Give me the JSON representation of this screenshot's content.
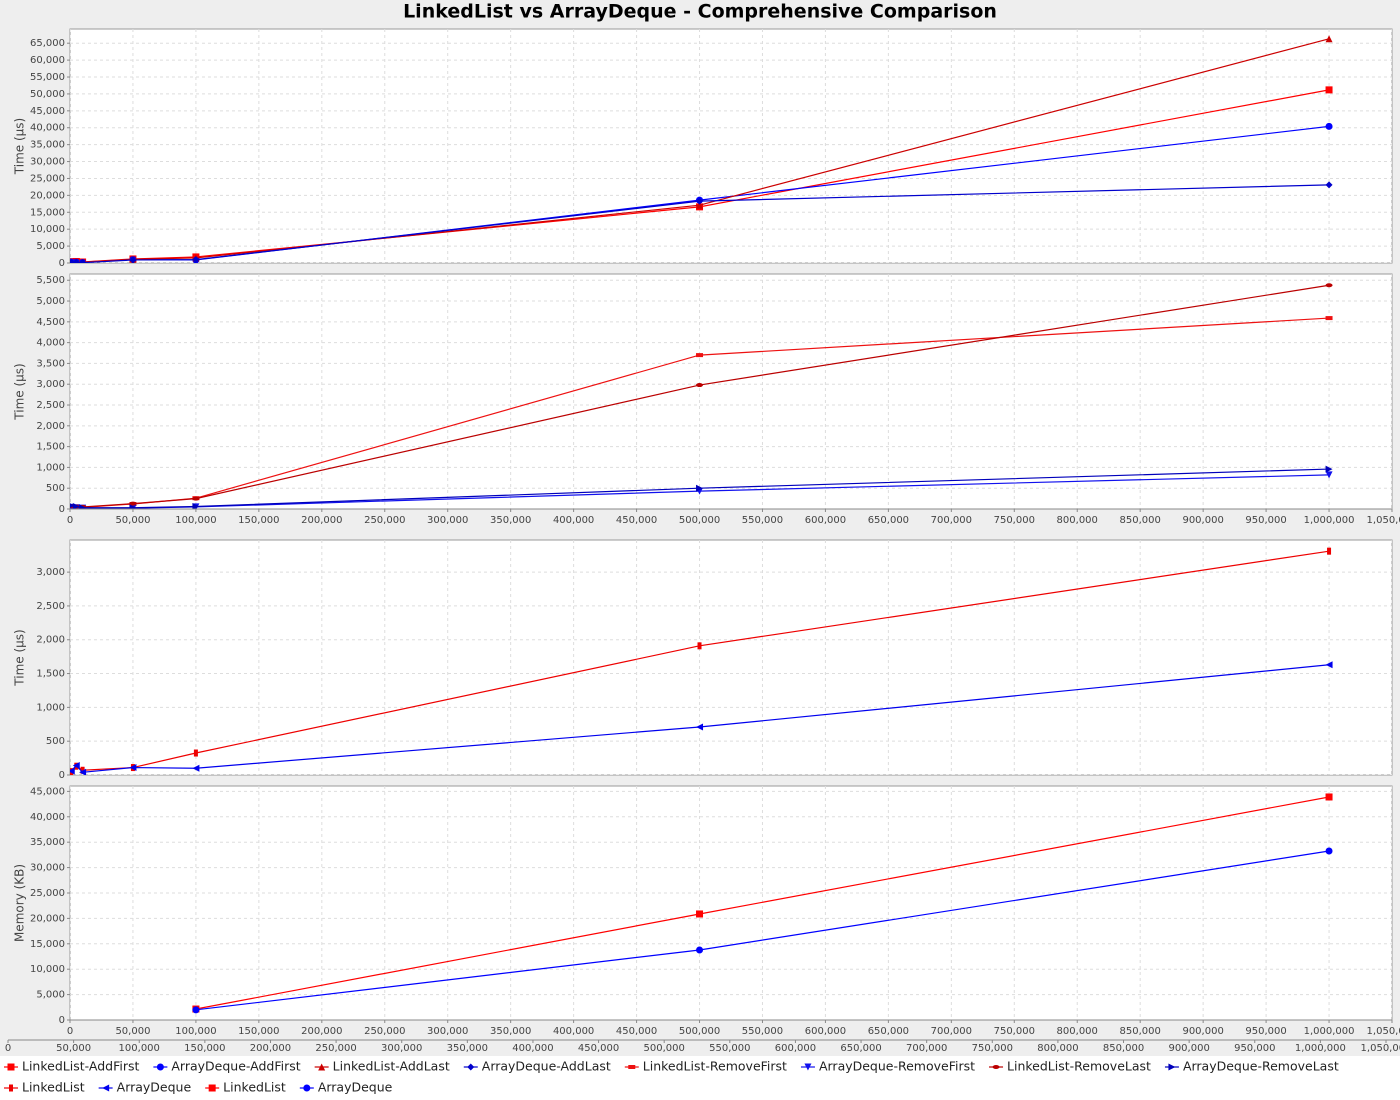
{
  "title": "LinkedList vs ArrayDeque - Comprehensive Comparison",
  "chart_data": [
    {
      "type": "line",
      "ylabel": "Time (µs)",
      "x": [
        1000,
        5000,
        10000,
        50000,
        100000,
        500000,
        1000000
      ],
      "xlim": [
        0,
        1050000
      ],
      "x_axis_labels": false,
      "xticks": [
        0,
        50000,
        100000,
        150000,
        200000,
        250000,
        300000,
        350000,
        400000,
        450000,
        500000,
        550000,
        600000,
        650000,
        700000,
        750000,
        800000,
        850000,
        900000,
        950000,
        1000000,
        1050000
      ],
      "ylim": [
        0,
        69200
      ],
      "yticks": [
        0,
        {
          "value": 5000,
          "label": "5,000"
        },
        {
          "value": 10000,
          "label": "10,000"
        },
        {
          "value": 15000,
          "label": "15,000"
        },
        {
          "value": 20000,
          "label": "20,000"
        },
        {
          "value": 25000,
          "label": "25,000"
        },
        {
          "value": 30000,
          "label": "30,000"
        },
        {
          "value": 35000,
          "label": "35,000"
        },
        {
          "value": 40000,
          "label": "40,000"
        },
        {
          "value": 45000,
          "label": "45,000"
        },
        {
          "value": 50000,
          "label": "50,000"
        },
        {
          "value": 55000,
          "label": "55,000"
        },
        {
          "value": 60000,
          "label": "60,000"
        },
        {
          "value": 65000,
          "label": "65,000"
        }
      ],
      "grid": true,
      "series": [
        {
          "name": "LinkedList-AddFirst",
          "color": "#ff0000",
          "marker": "square",
          "values": [
            400,
            450,
            300,
            1200,
            1800,
            16600,
            51200
          ]
        },
        {
          "name": "ArrayDeque-AddFirst",
          "color": "#0000ff",
          "marker": "circle",
          "values": [
            300,
            250,
            150,
            1000,
            900,
            18600,
            40400
          ]
        },
        {
          "name": "LinkedList-AddLast",
          "color": "#cc0000",
          "marker": "triangle-up",
          "values": [
            350,
            300,
            250,
            1100,
            1500,
            17100,
            66300
          ]
        },
        {
          "name": "ArrayDeque-AddLast",
          "color": "#0000cc",
          "marker": "diamond",
          "values": [
            200,
            150,
            100,
            900,
            1000,
            18300,
            23100
          ]
        }
      ]
    },
    {
      "type": "line",
      "ylabel": "Time (µs)",
      "x": [
        1000,
        5000,
        10000,
        50000,
        100000,
        500000,
        1000000
      ],
      "xlim": [
        0,
        1050000
      ],
      "x_axis_labels": true,
      "xticks": [
        0,
        {
          "value": 50000,
          "label": "50,000"
        },
        {
          "value": 100000,
          "label": "100,000"
        },
        {
          "value": 150000,
          "label": "150,000"
        },
        {
          "value": 200000,
          "label": "200,000"
        },
        {
          "value": 250000,
          "label": "250,000"
        },
        {
          "value": 300000,
          "label": "300,000"
        },
        {
          "value": 350000,
          "label": "350,000"
        },
        {
          "value": 400000,
          "label": "400,000"
        },
        {
          "value": 450000,
          "label": "450,000"
        },
        {
          "value": 500000,
          "label": "500,000"
        },
        {
          "value": 550000,
          "label": "550,000"
        },
        {
          "value": 600000,
          "label": "600,000"
        },
        {
          "value": 650000,
          "label": "650,000"
        },
        {
          "value": 700000,
          "label": "700,000"
        },
        {
          "value": 750000,
          "label": "750,000"
        },
        {
          "value": 800000,
          "label": "800,000"
        },
        {
          "value": 850000,
          "label": "850,000"
        },
        {
          "value": 900000,
          "label": "900,000"
        },
        {
          "value": 950000,
          "label": "950,000"
        },
        {
          "value": 1000000,
          "label": "1,000,000"
        },
        {
          "value": 1050000,
          "label": "1,050,000"
        }
      ],
      "ylim": [
        0,
        5650
      ],
      "yticks": [
        0,
        500,
        {
          "value": 1000,
          "label": "1,000"
        },
        {
          "value": 1500,
          "label": "1,500"
        },
        {
          "value": 2000,
          "label": "2,000"
        },
        {
          "value": 2500,
          "label": "2,500"
        },
        {
          "value": 3000,
          "label": "3,000"
        },
        {
          "value": 3500,
          "label": "3,500"
        },
        {
          "value": 4000,
          "label": "4,000"
        },
        {
          "value": 4500,
          "label": "4,500"
        },
        {
          "value": 5000,
          "label": "5,000"
        },
        {
          "value": 5500,
          "label": "5,500"
        }
      ],
      "grid": true,
      "series": [
        {
          "name": "LinkedList-RemoveFirst",
          "color": "#ee1111",
          "marker": "rect-h",
          "values": [
            60,
            50,
            40,
            120,
            260,
            3700,
            4590
          ]
        },
        {
          "name": "ArrayDeque-RemoveFirst",
          "color": "#1111ee",
          "marker": "triangle-down",
          "values": [
            40,
            30,
            20,
            20,
            50,
            430,
            820
          ]
        },
        {
          "name": "LinkedList-RemoveLast",
          "color": "#bb0000",
          "marker": "ellipse",
          "values": [
            70,
            60,
            50,
            130,
            250,
            2980,
            5380
          ]
        },
        {
          "name": "ArrayDeque-RemoveLast",
          "color": "#0000bb",
          "marker": "triangle-right",
          "values": [
            80,
            60,
            30,
            30,
            60,
            500,
            960
          ]
        }
      ]
    },
    {
      "type": "line",
      "ylabel": "Time (µs)",
      "x": [
        1000,
        5000,
        10000,
        50000,
        100000,
        500000,
        1000000
      ],
      "xlim": [
        0,
        1050000
      ],
      "x_axis_labels": false,
      "xticks": [
        0,
        50000,
        100000,
        150000,
        200000,
        250000,
        300000,
        350000,
        400000,
        450000,
        500000,
        550000,
        600000,
        650000,
        700000,
        750000,
        800000,
        850000,
        900000,
        950000,
        1000000,
        1050000
      ],
      "ylim": [
        0,
        3475
      ],
      "yticks": [
        0,
        500,
        {
          "value": 1000,
          "label": "1,000"
        },
        {
          "value": 1500,
          "label": "1,500"
        },
        {
          "value": 2000,
          "label": "2,000"
        },
        {
          "value": 2500,
          "label": "2,500"
        },
        {
          "value": 3000,
          "label": "3,000"
        }
      ],
      "grid": true,
      "series": [
        {
          "name": "LinkedList",
          "color": "#ee0000",
          "marker": "rect-v",
          "values": [
            50,
            130,
            70,
            110,
            325,
            1910,
            3310
          ]
        },
        {
          "name": "ArrayDeque",
          "color": "#0000ee",
          "marker": "triangle-left",
          "values": [
            60,
            140,
            40,
            110,
            100,
            710,
            1630
          ]
        }
      ]
    },
    {
      "type": "line",
      "ylabel": "Memory (KB)",
      "x": [
        100000,
        500000,
        1000000
      ],
      "xlim": [
        0,
        1050000
      ],
      "x_axis_labels": true,
      "xticks": [
        0,
        {
          "value": 50000,
          "label": "50,000"
        },
        {
          "value": 100000,
          "label": "100,000"
        },
        {
          "value": 150000,
          "label": "150,000"
        },
        {
          "value": 200000,
          "label": "200,000"
        },
        {
          "value": 250000,
          "label": "250,000"
        },
        {
          "value": 300000,
          "label": "300,000"
        },
        {
          "value": 350000,
          "label": "350,000"
        },
        {
          "value": 400000,
          "label": "400,000"
        },
        {
          "value": 450000,
          "label": "450,000"
        },
        {
          "value": 500000,
          "label": "500,000"
        },
        {
          "value": 550000,
          "label": "550,000"
        },
        {
          "value": 600000,
          "label": "600,000"
        },
        {
          "value": 650000,
          "label": "650,000"
        },
        {
          "value": 700000,
          "label": "700,000"
        },
        {
          "value": 750000,
          "label": "750,000"
        },
        {
          "value": 800000,
          "label": "800,000"
        },
        {
          "value": 850000,
          "label": "850,000"
        },
        {
          "value": 900000,
          "label": "900,000"
        },
        {
          "value": 950000,
          "label": "950,000"
        },
        {
          "value": 1000000,
          "label": "1,000,000"
        },
        {
          "value": 1050000,
          "label": "1,050,000"
        }
      ],
      "x2lim": [
        0,
        1050000
      ],
      "x2ticks": [
        0,
        {
          "value": 50000,
          "label": "50,000"
        },
        {
          "value": 100000,
          "label": "100,000"
        },
        {
          "value": 150000,
          "label": "150,000"
        },
        {
          "value": 200000,
          "label": "200,000"
        },
        {
          "value": 250000,
          "label": "250,000"
        },
        {
          "value": 300000,
          "label": "300,000"
        },
        {
          "value": 350000,
          "label": "350,000"
        },
        {
          "value": 400000,
          "label": "400,000"
        },
        {
          "value": 450000,
          "label": "450,000"
        },
        {
          "value": 500000,
          "label": "500,000"
        },
        {
          "value": 550000,
          "label": "550,000"
        },
        {
          "value": 600000,
          "label": "600,000"
        },
        {
          "value": 650000,
          "label": "650,000"
        },
        {
          "value": 700000,
          "label": "700,000"
        },
        {
          "value": 750000,
          "label": "750,000"
        },
        {
          "value": 800000,
          "label": "800,000"
        },
        {
          "value": 850000,
          "label": "850,000"
        },
        {
          "value": 900000,
          "label": "900,000"
        },
        {
          "value": 950000,
          "label": "950,000"
        },
        {
          "value": 1000000,
          "label": "1,000,000"
        },
        {
          "value": 1050000,
          "label": "1,050,000"
        }
      ],
      "ylim": [
        0,
        46060
      ],
      "yticks": [
        0,
        {
          "value": 5000,
          "label": "5,000"
        },
        {
          "value": 10000,
          "label": "10,000"
        },
        {
          "value": 15000,
          "label": "15,000"
        },
        {
          "value": 20000,
          "label": "20,000"
        },
        {
          "value": 25000,
          "label": "25,000"
        },
        {
          "value": 30000,
          "label": "30,000"
        },
        {
          "value": 35000,
          "label": "35,000"
        },
        {
          "value": 40000,
          "label": "40,000"
        },
        {
          "value": 45000,
          "label": "45,000"
        }
      ],
      "grid": true,
      "series": [
        {
          "name": "LinkedList",
          "color": "#ff0000",
          "marker": "square",
          "values": [
            2160,
            20870,
            43900
          ]
        },
        {
          "name": "ArrayDeque",
          "color": "#0000ff",
          "marker": "circle",
          "values": [
            2000,
            13780,
            33270
          ]
        }
      ]
    }
  ]
}
